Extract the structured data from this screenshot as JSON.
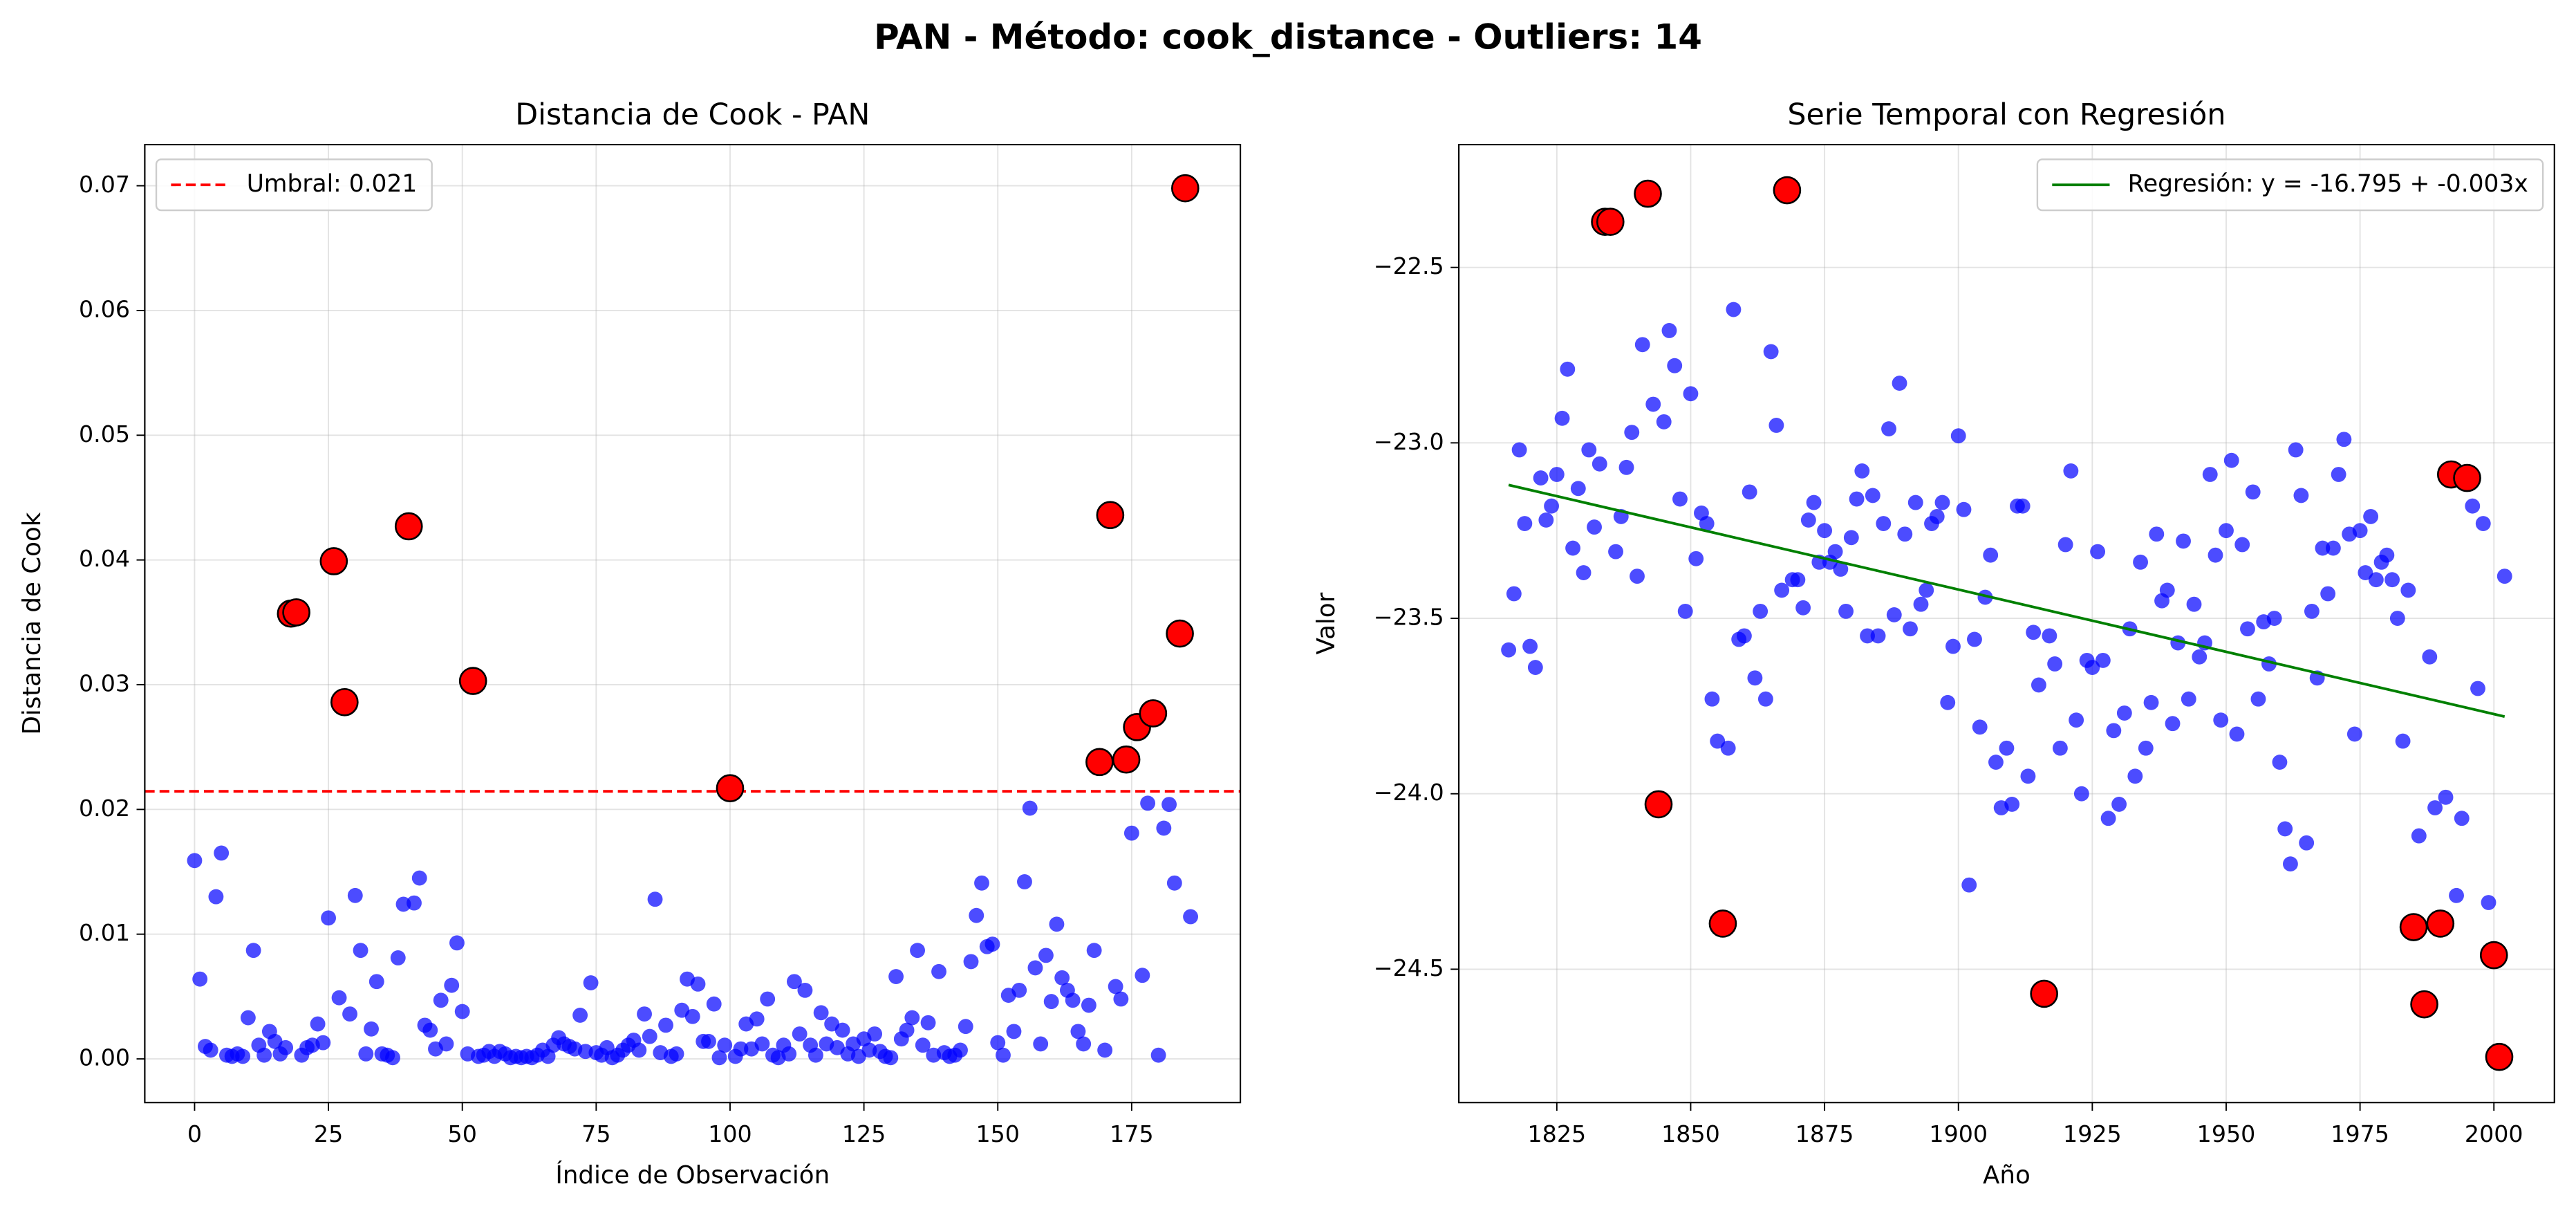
{
  "suptitle": "PAN  - Método: cook_distance - Outliers: 14",
  "chart_data": [
    {
      "type": "scatter",
      "title": "Distancia de Cook - PAN",
      "xlabel": "Índice de Observación",
      "ylabel": "Distancia de Cook",
      "xlim": [
        -9.3,
        195.3
      ],
      "ylim": [
        -0.0035,
        0.0733
      ],
      "xticks": [
        0,
        25,
        50,
        75,
        100,
        125,
        150,
        175
      ],
      "yticks": [
        {
          "value": 0,
          "label": "0.00"
        },
        {
          "value": 0.01,
          "label": "0.01"
        },
        {
          "value": 0.02,
          "label": "0.02"
        },
        {
          "value": 0.03,
          "label": "0.03"
        },
        {
          "value": 0.04,
          "label": "0.04"
        },
        {
          "value": 0.05,
          "label": "0.05"
        },
        {
          "value": 0.06,
          "label": "0.06"
        },
        {
          "value": 0.07,
          "label": "0.07"
        }
      ],
      "grid": true,
      "legend": "upper left",
      "threshold": {
        "name": "Umbral: 0.021",
        "value": 0.02145,
        "color": "#ff0000"
      },
      "series": [
        {
          "color": "#0000ff",
          "x": [
            0,
            1,
            2,
            3,
            4,
            5,
            6,
            7,
            8,
            9,
            10,
            11,
            12,
            13,
            14,
            15,
            16,
            17,
            18,
            19,
            20,
            21,
            22,
            23,
            24,
            25,
            26,
            27,
            28,
            29,
            30,
            31,
            32,
            33,
            34,
            35,
            36,
            37,
            38,
            39,
            40,
            41,
            42,
            43,
            44,
            45,
            46,
            47,
            48,
            49,
            50,
            51,
            52,
            53,
            54,
            55,
            56,
            57,
            58,
            59,
            60,
            61,
            62,
            63,
            64,
            65,
            66,
            67,
            68,
            69,
            70,
            71,
            72,
            73,
            74,
            75,
            76,
            77,
            78,
            79,
            80,
            81,
            82,
            83,
            84,
            85,
            86,
            87,
            88,
            89,
            90,
            91,
            92,
            93,
            94,
            95,
            96,
            97,
            98,
            99,
            100,
            101,
            102,
            103,
            104,
            105,
            106,
            107,
            108,
            109,
            110,
            111,
            112,
            113,
            114,
            115,
            116,
            117,
            118,
            119,
            120,
            121,
            122,
            123,
            124,
            125,
            126,
            127,
            128,
            129,
            130,
            131,
            132,
            133,
            134,
            135,
            136,
            137,
            138,
            139,
            140,
            141,
            142,
            143,
            144,
            145,
            146,
            147,
            148,
            149,
            150,
            151,
            152,
            153,
            154,
            155,
            156,
            157,
            158,
            159,
            160,
            161,
            162,
            163,
            164,
            165,
            166,
            167,
            168,
            169,
            170,
            171,
            172,
            173,
            174,
            175,
            176,
            177,
            178,
            179,
            180,
            181,
            182,
            183,
            184,
            185,
            186
          ],
          "values": [
            0.0159,
            0.0064,
            0.001,
            0.0007,
            0.013,
            0.0165,
            0.0003,
            0.0002,
            0.0004,
            0.0002,
            0.0033,
            0.0087,
            0.0011,
            0.0003,
            0.0022,
            0.0014,
            0.0004,
            0.0009,
            null,
            null,
            0.0003,
            0.0009,
            0.0011,
            0.0028,
            0.0013,
            0.0113,
            null,
            0.0049,
            null,
            0.0036,
            0.0131,
            0.0087,
            0.0004,
            0.0024,
            0.0062,
            0.0004,
            0.0003,
            0.0001,
            0.0081,
            0.0124,
            null,
            0.0125,
            0.0145,
            0.0027,
            0.0023,
            0.0008,
            0.0047,
            0.0012,
            0.0059,
            0.0093,
            0.0038,
            0.0004,
            null,
            0.0002,
            0.0003,
            0.0006,
            0.0002,
            0.0006,
            0.0004,
            0.0001,
            0.0002,
            0.0001,
            0.0002,
            0.0001,
            0.0003,
            0.0007,
            0.0002,
            0.0011,
            0.0017,
            0.0012,
            0.001,
            0.0008,
            0.0035,
            0.0006,
            0.0061,
            0.0005,
            0.0003,
            0.0009,
            0.0001,
            0.0003,
            0.0007,
            0.0011,
            0.0015,
            0.0007,
            0.0036,
            0.0018,
            0.0128,
            0.0005,
            0.0027,
            0.0002,
            0.0004,
            0.0039,
            0.0064,
            0.0034,
            0.006,
            0.0014,
            0.0014,
            0.0044,
            0.0001,
            0.0011,
            null,
            0.0002,
            0.0008,
            0.0028,
            0.0008,
            0.0032,
            0.0012,
            0.0048,
            0.0003,
            0.0001,
            0.0011,
            0.0004,
            0.0062,
            0.002,
            0.0055,
            0.0011,
            0.0003,
            0.0037,
            0.0012,
            0.0028,
            0.0009,
            0.0023,
            0.0004,
            0.0012,
            0.0002,
            0.0016,
            0.0007,
            0.002,
            0.0006,
            0.0002,
            0.0001,
            0.0066,
            0.0016,
            0.0023,
            0.0033,
            0.0087,
            0.0011,
            0.0029,
            0.0003,
            0.007,
            0.0005,
            0.0002,
            0.0003,
            0.0007,
            0.0026,
            0.0078,
            0.0115,
            0.0141,
            0.009,
            0.0092,
            0.0013,
            0.0003,
            0.0051,
            0.0022,
            0.0055,
            0.0142,
            0.0201,
            0.0073,
            0.0012,
            0.0083,
            0.0046,
            0.0108,
            0.0065,
            0.0055,
            0.0047,
            0.0022,
            0.0012,
            0.0043,
            0.0087,
            null,
            0.0007,
            null,
            0.0058,
            0.0048,
            null,
            0.0181,
            null,
            0.0067,
            0.0205,
            null,
            0.0003,
            0.0185,
            0.0204,
            0.0141,
            null,
            null,
            0.0114
          ]
        },
        {
          "color": "#ff0000",
          "x": [
            18,
            19,
            26,
            28,
            40,
            52,
            100,
            169,
            171,
            174,
            176,
            179,
            184,
            185
          ],
          "values": [
            0.0357,
            0.0358,
            0.0399,
            0.0286,
            0.0427,
            0.0303,
            0.0217,
            0.0238,
            0.0436,
            0.024,
            0.0266,
            0.0277,
            0.0341,
            0.0698
          ]
        }
      ]
    },
    {
      "type": "scatter",
      "title": "Serie Temporal con Regresión",
      "xlabel": "Año",
      "ylabel": "Valor",
      "xlim": [
        1806.7,
        2011.3
      ],
      "ylim": [
        -24.88,
        -22.15
      ],
      "xticks": [
        1825,
        1850,
        1875,
        1900,
        1925,
        1950,
        1975,
        2000
      ],
      "yticks": [
        {
          "value": -22.5,
          "label": "−22.5"
        },
        {
          "value": -23,
          "label": "−23.0"
        },
        {
          "value": -23.5,
          "label": "−23.5"
        },
        {
          "value": -24,
          "label": "−24.0"
        },
        {
          "value": -24.5,
          "label": "−24.5"
        }
      ],
      "grid": true,
      "legend": "upper right",
      "series": [
        {
          "color": "#0000ff",
          "x": [
            1816,
            1817,
            1818,
            1819,
            1820,
            1821,
            1822,
            1823,
            1824,
            1825,
            1826,
            1827,
            1828,
            1829,
            1830,
            1831,
            1832,
            1833,
            1834,
            1835,
            1836,
            1837,
            1838,
            1839,
            1840,
            1841,
            1842,
            1843,
            1844,
            1845,
            1846,
            1847,
            1848,
            1849,
            1850,
            1851,
            1852,
            1853,
            1854,
            1855,
            1856,
            1857,
            1858,
            1859,
            1860,
            1861,
            1862,
            1863,
            1864,
            1865,
            1866,
            1867,
            1868,
            1869,
            1870,
            1871,
            1872,
            1873,
            1874,
            1875,
            1876,
            1877,
            1878,
            1879,
            1880,
            1881,
            1882,
            1883,
            1884,
            1885,
            1886,
            1887,
            1888,
            1889,
            1890,
            1891,
            1892,
            1893,
            1894,
            1895,
            1896,
            1897,
            1898,
            1899,
            1900,
            1901,
            1902,
            1903,
            1904,
            1905,
            1906,
            1907,
            1908,
            1909,
            1910,
            1911,
            1912,
            1913,
            1914,
            1915,
            1916,
            1917,
            1918,
            1919,
            1920,
            1921,
            1922,
            1923,
            1924,
            1925,
            1926,
            1927,
            1928,
            1929,
            1930,
            1931,
            1932,
            1933,
            1934,
            1935,
            1936,
            1937,
            1938,
            1939,
            1940,
            1941,
            1942,
            1943,
            1944,
            1945,
            1946,
            1947,
            1948,
            1949,
            1950,
            1951,
            1952,
            1953,
            1954,
            1955,
            1956,
            1957,
            1958,
            1959,
            1960,
            1961,
            1962,
            1963,
            1964,
            1965,
            1966,
            1967,
            1968,
            1969,
            1970,
            1971,
            1972,
            1973,
            1974,
            1975,
            1976,
            1977,
            1978,
            1979,
            1980,
            1981,
            1982,
            1983,
            1984,
            1985,
            1986,
            1987,
            1988,
            1989,
            1990,
            1991,
            1992,
            1993,
            1994,
            1995,
            1996,
            1997,
            1998,
            1999,
            2000,
            2001,
            2002
          ],
          "values": [
            -23.59,
            -23.43,
            -23.02,
            -23.23,
            -23.58,
            -23.64,
            -23.1,
            -23.22,
            -23.18,
            -23.09,
            -22.93,
            -22.79,
            -23.3,
            -23.13,
            -23.37,
            -23.02,
            -23.24,
            -23.06,
            null,
            null,
            -23.31,
            -23.21,
            -23.07,
            -22.97,
            -23.38,
            -22.72,
            null,
            -22.89,
            null,
            -22.94,
            -22.68,
            -22.78,
            -23.16,
            -23.48,
            -22.86,
            -23.33,
            -23.2,
            -23.23,
            -23.73,
            -23.85,
            null,
            -23.87,
            -22.62,
            -23.56,
            -23.55,
            -23.14,
            -23.67,
            -23.48,
            -23.73,
            -22.74,
            -22.95,
            -23.42,
            null,
            -23.39,
            -23.39,
            -23.47,
            -23.22,
            -23.17,
            -23.34,
            -23.25,
            -23.34,
            -23.31,
            -23.36,
            -23.48,
            -23.27,
            -23.16,
            -23.08,
            -23.55,
            -23.15,
            -23.55,
            -23.23,
            -22.96,
            -23.49,
            -22.83,
            -23.26,
            -23.53,
            -23.17,
            -23.46,
            -23.42,
            -23.23,
            -23.21,
            -23.17,
            -23.74,
            -23.58,
            -22.98,
            -23.19,
            -24.26,
            -23.56,
            -23.81,
            -23.44,
            -23.32,
            -23.91,
            -24.04,
            -23.87,
            -24.03,
            -23.18,
            -23.18,
            -23.95,
            -23.54,
            -23.69,
            null,
            -23.55,
            -23.63,
            -23.87,
            -23.29,
            -23.08,
            -23.79,
            -24.0,
            -23.62,
            -23.64,
            -23.31,
            -23.62,
            -24.07,
            -23.82,
            -24.03,
            -23.77,
            -23.53,
            -23.95,
            -23.34,
            -23.87,
            -23.74,
            -23.26,
            -23.45,
            -23.42,
            -23.8,
            -23.57,
            -23.28,
            -23.73,
            -23.46,
            -23.61,
            -23.57,
            -23.09,
            -23.32,
            -23.79,
            -23.25,
            -23.05,
            -23.83,
            -23.29,
            -23.53,
            -23.14,
            -23.73,
            -23.51,
            -23.63,
            -23.5,
            -23.91,
            -24.1,
            -24.2,
            -23.02,
            -23.15,
            -24.14,
            -23.48,
            -23.67,
            -23.3,
            -23.43,
            -23.3,
            -23.09,
            -22.99,
            -23.26,
            -23.83,
            -23.25,
            -23.37,
            -23.21,
            -23.39,
            -23.34,
            -23.32,
            -23.39,
            -23.5,
            -23.85,
            -23.42,
            null,
            -24.12,
            null,
            -23.61,
            -24.04,
            null,
            -24.01,
            null,
            -24.29,
            -24.07,
            null,
            -23.18,
            -23.7,
            -23.23,
            -24.31,
            null,
            null,
            -23.38
          ]
        },
        {
          "color": "#ff0000",
          "x": [
            1834,
            1835,
            1842,
            1844,
            1856,
            1868,
            1916,
            1985,
            1987,
            1990,
            1992,
            1995,
            2000,
            2001
          ],
          "values": [
            -22.37,
            -22.37,
            -22.29,
            -24.03,
            -24.37,
            -22.28,
            -24.57,
            -24.38,
            -24.6,
            -24.37,
            -23.09,
            -23.1,
            -24.46,
            -24.75
          ]
        },
        {
          "type": "line",
          "name": "Regresión: y = -16.795 + -0.003x",
          "color": "#008000",
          "x": [
            1816,
            2002
          ],
          "values": [
            -23.12,
            -23.78
          ]
        }
      ]
    }
  ]
}
